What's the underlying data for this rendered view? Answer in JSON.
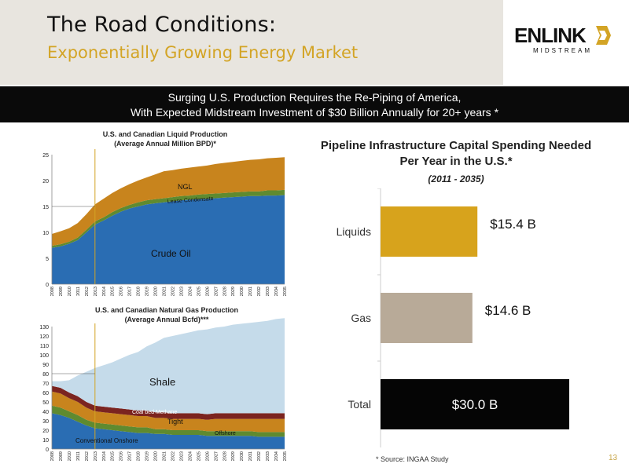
{
  "header": {
    "title": "The Road Conditions:",
    "subtitle": "Exponentially Growing Energy Market"
  },
  "logo": {
    "word": "ENLINK",
    "sub": "MIDSTREAM"
  },
  "banner": {
    "line1": "Surging U.S. Production Requires the Re-Piping of America,",
    "line2": "With Expected Midstream Investment of $30 Billion Annually for 20+ years *"
  },
  "colors": {
    "crude": "#2a6db3",
    "condensate": "#5f8a30",
    "ngl": "#c8841d",
    "shale": "#c5dbea",
    "coalbed": "#7b2420",
    "tight": "#c8841d",
    "offshore": "#5f8a30",
    "onshore": "#2a6db3",
    "liquids": "#d7a31c",
    "gas": "#b8aa98",
    "total": "#050505",
    "accent": "#d3a425"
  },
  "chart_data": [
    {
      "type": "area",
      "title": "U.S. and Canadian Liquid Production",
      "subtitle": "(Average Annual Million BPD)*",
      "x": [
        "2008",
        "2009",
        "2010",
        "2011",
        "2012",
        "2013",
        "2014",
        "2015",
        "2016",
        "2017",
        "2018",
        "2019",
        "2020",
        "2021",
        "2022",
        "2023",
        "2024",
        "2025",
        "2026",
        "2027",
        "2028",
        "2029",
        "2030",
        "2031",
        "2032",
        "2033",
        "2034",
        "2035"
      ],
      "ylim": [
        0,
        25
      ],
      "yticks": [
        0,
        5,
        10,
        15,
        20,
        25
      ],
      "series": [
        {
          "name": "Crude Oil",
          "values": [
            7.0,
            7.3,
            7.8,
            8.5,
            10.0,
            11.5,
            12.3,
            13.2,
            14.0,
            14.6,
            15.0,
            15.4,
            15.6,
            15.8,
            16.0,
            16.2,
            16.3,
            16.4,
            16.5,
            16.6,
            16.7,
            16.8,
            16.9,
            17.0,
            17.0,
            17.1,
            17.1,
            17.2
          ]
        },
        {
          "name": "Lease Condensate",
          "values": [
            0.4,
            0.4,
            0.4,
            0.5,
            0.5,
            0.6,
            0.6,
            0.7,
            0.7,
            0.7,
            0.8,
            0.8,
            0.8,
            0.8,
            0.8,
            0.8,
            0.8,
            0.9,
            0.9,
            0.9,
            0.9,
            0.9,
            0.9,
            0.9,
            0.9,
            1.0,
            1.0,
            1.0
          ]
        },
        {
          "name": "NGL",
          "values": [
            2.3,
            2.5,
            2.6,
            2.8,
            3.0,
            3.3,
            3.6,
            3.7,
            3.8,
            4.0,
            4.2,
            4.4,
            4.8,
            5.2,
            5.2,
            5.3,
            5.4,
            5.4,
            5.5,
            5.7,
            5.8,
            5.9,
            6.0,
            6.1,
            6.2,
            6.2,
            6.3,
            6.3
          ]
        }
      ],
      "labels": {
        "crude": "Crude Oil",
        "condensate": "Lease Condensate",
        "ngl": "NGL"
      }
    },
    {
      "type": "area",
      "title": "U.S. and Canadian Natural Gas Production",
      "subtitle": "(Average Annual Bcfd)***",
      "x": [
        "2008",
        "2009",
        "2010",
        "2011",
        "2012",
        "2013",
        "2014",
        "2015",
        "2016",
        "2017",
        "2018",
        "2019",
        "2020",
        "2021",
        "2022",
        "2023",
        "2024",
        "2025",
        "2026",
        "2027",
        "2028",
        "2029",
        "2030",
        "2031",
        "2032",
        "2033",
        "2034",
        "2035"
      ],
      "ylim": [
        0,
        130
      ],
      "yticks": [
        0,
        10,
        20,
        30,
        40,
        50,
        60,
        70,
        80,
        90,
        100,
        110,
        120,
        130
      ],
      "series": [
        {
          "name": "Conventional Onshore",
          "values": [
            38,
            36,
            33,
            29,
            25,
            22,
            21,
            20,
            19,
            18,
            17,
            17,
            16,
            16,
            15,
            15,
            15,
            15,
            14,
            14,
            14,
            14,
            14,
            14,
            13,
            13,
            13,
            13
          ]
        },
        {
          "name": "Offshore",
          "values": [
            8,
            8,
            7,
            7,
            6,
            6,
            6,
            6,
            6,
            6,
            6,
            6,
            5,
            5,
            5,
            5,
            5,
            5,
            5,
            5,
            5,
            5,
            5,
            5,
            5,
            5,
            5,
            5
          ]
        },
        {
          "name": "Tight",
          "values": [
            15,
            15,
            14,
            14,
            13,
            12,
            12,
            12,
            12,
            12,
            12,
            12,
            12,
            12,
            12,
            12,
            12,
            12,
            12,
            13,
            13,
            13,
            13,
            13,
            14,
            14,
            14,
            14
          ]
        },
        {
          "name": "Coal bed Methane",
          "values": [
            6,
            6,
            6,
            6,
            6,
            6,
            6,
            6,
            6,
            6,
            6,
            6,
            6,
            6,
            6,
            6,
            6,
            6,
            6,
            6,
            6,
            6,
            6,
            6,
            6,
            6,
            6,
            6
          ]
        },
        {
          "name": "Shale",
          "values": [
            5,
            7,
            13,
            22,
            32,
            40,
            44,
            48,
            53,
            58,
            62,
            68,
            74,
            79,
            82,
            84,
            86,
            88,
            90,
            91,
            92,
            94,
            95,
            96,
            97,
            98,
            100,
            101
          ]
        }
      ],
      "labels": {
        "shale": "Shale",
        "coalbed": "Coal bed Methane",
        "tight": "Tight",
        "offshore": "Offshore",
        "onshore": "Conventional Onshore"
      }
    },
    {
      "type": "bar",
      "title": "Pipeline Infrastructure Capital Spending Needed Per Year in the U.S.*",
      "title_line1": "Pipeline Infrastructure Capital Spending Needed",
      "title_line2": "Per Year in the U.S.*",
      "subtitle": "(2011 - 2035)",
      "categories": [
        "Liquids",
        "Gas",
        "Total"
      ],
      "values": [
        15.4,
        14.6,
        30.0
      ],
      "value_labels": [
        "$15.4 B",
        "$14.6 B",
        "$30.0 B"
      ],
      "xlim": [
        0,
        32
      ]
    }
  ],
  "footer": {
    "source": "*  Source: INGAA Study",
    "page": "13"
  }
}
